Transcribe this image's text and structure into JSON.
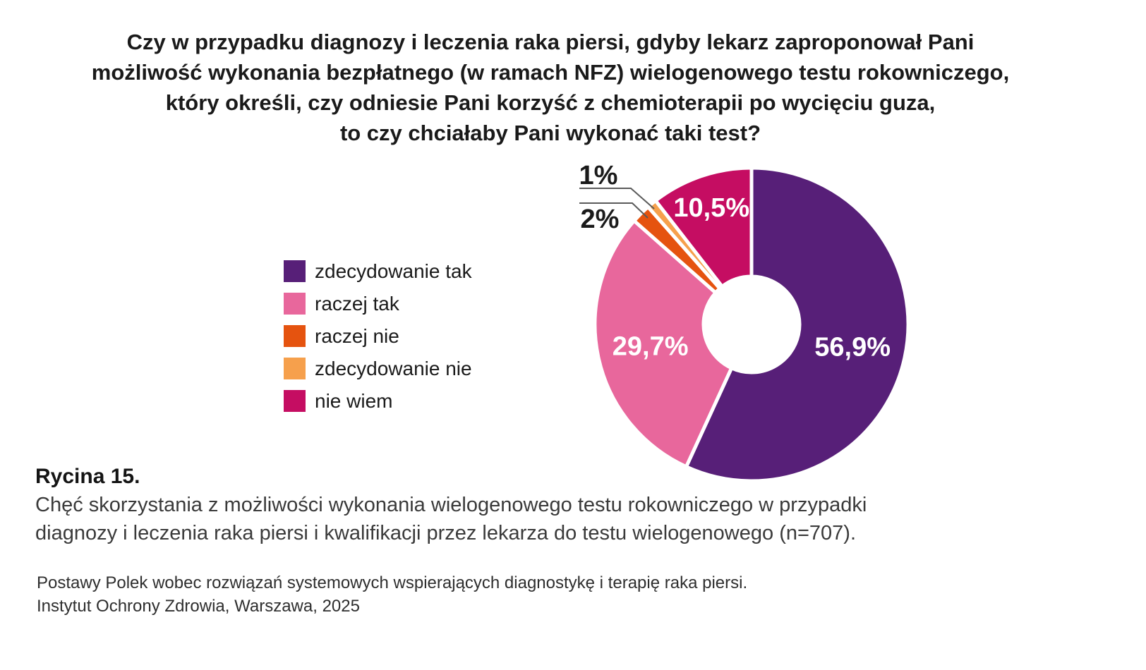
{
  "title": {
    "lines": [
      "Czy w przypadku diagnozy i leczenia raka piersi, gdyby lekarz zaproponował Pani",
      "możliwość wykonania bezpłatnego (w ramach NFZ) wielogenowego testu rokowniczego,",
      "który określi, czy odniesie Pani korzyść z chemioterapii po wycięciu guza,",
      "to czy chciałaby Pani wykonać taki test?"
    ]
  },
  "chart_data": {
    "type": "pie",
    "style": "donut",
    "direction": "clockwise",
    "start_angle_deg": 0,
    "legend_position": "left",
    "categories": [
      "zdecydowanie tak",
      "raczej tak",
      "raczej nie",
      "zdecydowanie nie",
      "nie wiem"
    ],
    "values": [
      56.9,
      29.7,
      2,
      1,
      10.5
    ],
    "value_labels": [
      "56,9%",
      "29,7%",
      "2%",
      "1%",
      "10,5%"
    ],
    "colors": [
      "#571F78",
      "#E8679C",
      "#E5530F",
      "#F6A04C",
      "#C50D62"
    ],
    "inside_label_color": "#ffffff",
    "outside_label_color": "#1a1a1a",
    "slice_gap_color": "#ffffff"
  },
  "caption": {
    "heading": "Rycina 15.",
    "lines": [
      "Chęć skorzystania z możliwości wykonania wielogenowego testu rokowniczego w przypadki",
      "diagnozy i leczenia raka piersi i kwalifikacji przez lekarza do testu wielogenowego (n=707)."
    ]
  },
  "source": {
    "lines": [
      "Postawy Polek wobec rozwiązań systemowych wspierających diagnostykę i terapię raka piersi.",
      "Instytut Ochrony Zdrowia, Warszawa, 2025"
    ]
  }
}
